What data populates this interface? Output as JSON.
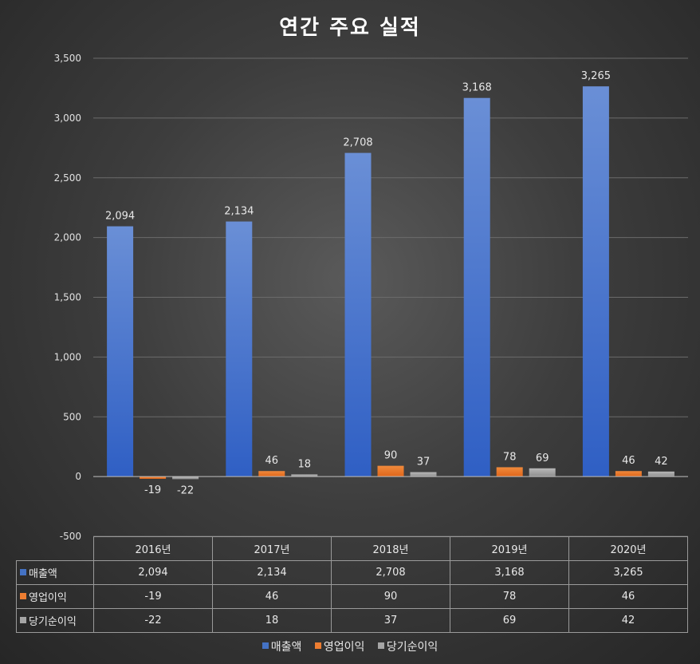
{
  "chart_data": {
    "type": "bar",
    "title": "연간 주요 실적",
    "categories": [
      "2016년",
      "2017년",
      "2018년",
      "2019년",
      "2020년"
    ],
    "series": [
      {
        "name": "매출액",
        "color": "#4472c4",
        "values": [
          2094,
          2134,
          2708,
          3168,
          3265
        ],
        "labels": [
          "2,094",
          "2,134",
          "2,708",
          "3,168",
          "3,265"
        ]
      },
      {
        "name": "영업이익",
        "color": "#ed7d31",
        "values": [
          -19,
          46,
          90,
          78,
          46
        ],
        "labels": [
          "-19",
          "46",
          "90",
          "78",
          "46"
        ]
      },
      {
        "name": "당기순이익",
        "color": "#a5a5a5",
        "values": [
          -22,
          18,
          37,
          69,
          42
        ],
        "labels": [
          "-22",
          "18",
          "37",
          "69",
          "42"
        ]
      }
    ],
    "yticks": [
      3500,
      3000,
      2500,
      2000,
      1500,
      1000,
      500,
      0,
      -500
    ],
    "ytick_labels": [
      "3,500",
      "3,000",
      "2,500",
      "2,000",
      "1,500",
      "1,000",
      "500",
      "0",
      "-500"
    ],
    "ylim": [
      -500,
      3500
    ],
    "grid": true,
    "legend_position": "bottom",
    "data_table": true
  }
}
